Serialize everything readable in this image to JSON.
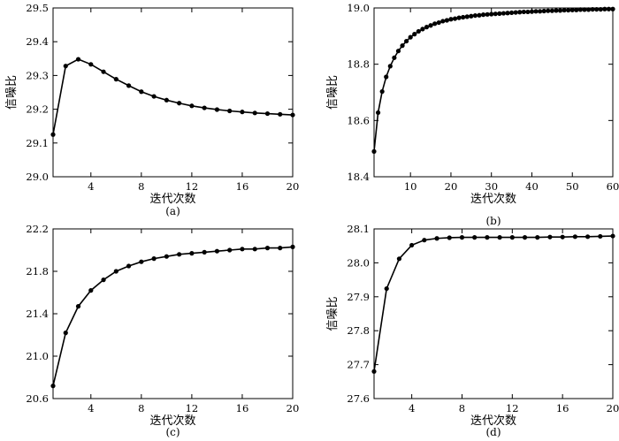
{
  "chart_data": [
    {
      "id": "a",
      "type": "line",
      "title": "",
      "caption": "(a)",
      "xlabel": "迭代次数",
      "ylabel": "信噪比",
      "xlim": [
        1,
        20
      ],
      "ylim": [
        29.0,
        29.5
      ],
      "xticks": [
        4,
        8,
        12,
        16,
        20
      ],
      "xtick_labels": [
        "4",
        "8",
        "12",
        "16",
        "20"
      ],
      "yticks": [
        29.0,
        29.1,
        29.2,
        29.3,
        29.4,
        29.5
      ],
      "ytick_labels": [
        "29.0",
        "29.1",
        "29.2",
        "29.3",
        "29.4",
        "29.5"
      ],
      "grid": false,
      "series": [
        {
          "name": "",
          "x": [
            1,
            2,
            3,
            4,
            5,
            6,
            7,
            8,
            9,
            10,
            11,
            12,
            13,
            14,
            15,
            16,
            17,
            18,
            19,
            20
          ],
          "y": [
            29.125,
            29.328,
            29.348,
            29.333,
            29.311,
            29.289,
            29.27,
            29.252,
            29.238,
            29.227,
            29.218,
            29.21,
            29.204,
            29.199,
            29.195,
            29.192,
            29.189,
            29.187,
            29.185,
            29.183
          ]
        }
      ]
    },
    {
      "id": "b",
      "type": "line",
      "title": "",
      "caption": "(b)",
      "xlabel": "迭代次数",
      "ylabel": "信噪比",
      "xlim": [
        1,
        60
      ],
      "ylim": [
        18.4,
        19.0
      ],
      "xticks": [
        10,
        20,
        30,
        40,
        50,
        60
      ],
      "xtick_labels": [
        "10",
        "20",
        "30",
        "40",
        "50",
        "60"
      ],
      "yticks": [
        18.4,
        18.6,
        18.8,
        19.0
      ],
      "ytick_labels": [
        "18.4",
        "18.6",
        "18.8",
        "19.0"
      ],
      "grid": false,
      "series": [
        {
          "name": "",
          "x": [
            1,
            2,
            3,
            4,
            5,
            6,
            7,
            8,
            9,
            10,
            11,
            12,
            13,
            14,
            15,
            16,
            17,
            18,
            19,
            20,
            21,
            22,
            23,
            24,
            25,
            26,
            27,
            28,
            29,
            30,
            31,
            32,
            33,
            34,
            35,
            36,
            37,
            38,
            39,
            40,
            41,
            42,
            43,
            44,
            45,
            46,
            47,
            48,
            49,
            50,
            51,
            52,
            53,
            54,
            55,
            56,
            57,
            58,
            59,
            60
          ],
          "y": [
            18.49,
            18.628,
            18.703,
            18.755,
            18.793,
            18.823,
            18.847,
            18.866,
            18.882,
            18.896,
            18.907,
            18.917,
            18.925,
            18.932,
            18.938,
            18.944,
            18.948,
            18.953,
            18.956,
            18.96,
            18.962,
            18.965,
            18.967,
            18.969,
            18.971,
            18.973,
            18.974,
            18.976,
            18.977,
            18.978,
            18.979,
            18.98,
            18.981,
            18.982,
            18.983,
            18.984,
            18.985,
            18.986,
            18.986,
            18.987,
            18.988,
            18.988,
            18.989,
            18.99,
            18.99,
            18.991,
            18.991,
            18.992,
            18.992,
            18.993,
            18.993,
            18.994,
            18.994,
            18.994,
            18.995,
            18.995,
            18.995,
            18.996,
            18.996,
            18.996
          ]
        }
      ]
    },
    {
      "id": "c",
      "type": "line",
      "title": "",
      "caption": "(c)",
      "xlabel": "迭代次数",
      "ylabel": "",
      "xlim": [
        1,
        20
      ],
      "ylim": [
        20.6,
        22.2
      ],
      "xticks": [
        4,
        8,
        12,
        16,
        20
      ],
      "xtick_labels": [
        "4",
        "8",
        "12",
        "16",
        "20"
      ],
      "yticks": [
        20.6,
        21.0,
        21.4,
        21.8,
        22.2
      ],
      "ytick_labels": [
        "20.6",
        "21.0",
        "21.4",
        "21.8",
        "22.2"
      ],
      "grid": false,
      "series": [
        {
          "name": "",
          "x": [
            1,
            2,
            3,
            4,
            5,
            6,
            7,
            8,
            9,
            10,
            11,
            12,
            13,
            14,
            15,
            16,
            17,
            18,
            19,
            20
          ],
          "y": [
            20.72,
            21.22,
            21.47,
            21.62,
            21.72,
            21.8,
            21.85,
            21.89,
            21.92,
            21.94,
            21.96,
            21.97,
            21.98,
            21.99,
            22.0,
            22.01,
            22.01,
            22.02,
            22.02,
            22.03
          ]
        }
      ]
    },
    {
      "id": "d",
      "type": "line",
      "title": "",
      "caption": "(d)",
      "xlabel": "迭代次数",
      "ylabel": "信噪比",
      "xlim": [
        1,
        20
      ],
      "ylim": [
        27.6,
        28.1
      ],
      "xticks": [
        4,
        8,
        12,
        16,
        20
      ],
      "xtick_labels": [
        "4",
        "8",
        "12",
        "16",
        "20"
      ],
      "yticks": [
        27.6,
        27.7,
        27.8,
        27.9,
        28.0,
        28.1
      ],
      "ytick_labels": [
        "27.6",
        "27.7",
        "27.8",
        "27.9",
        "28.0",
        "28.1"
      ],
      "grid": false,
      "series": [
        {
          "name": "",
          "x": [
            1,
            2,
            3,
            4,
            5,
            6,
            7,
            8,
            9,
            10,
            11,
            12,
            13,
            14,
            15,
            16,
            17,
            18,
            19,
            20
          ],
          "y": [
            27.68,
            27.924,
            28.012,
            28.052,
            28.067,
            28.072,
            28.074,
            28.075,
            28.075,
            28.075,
            28.075,
            28.075,
            28.075,
            28.075,
            28.076,
            28.076,
            28.077,
            28.077,
            28.078,
            28.079
          ]
        }
      ]
    }
  ]
}
